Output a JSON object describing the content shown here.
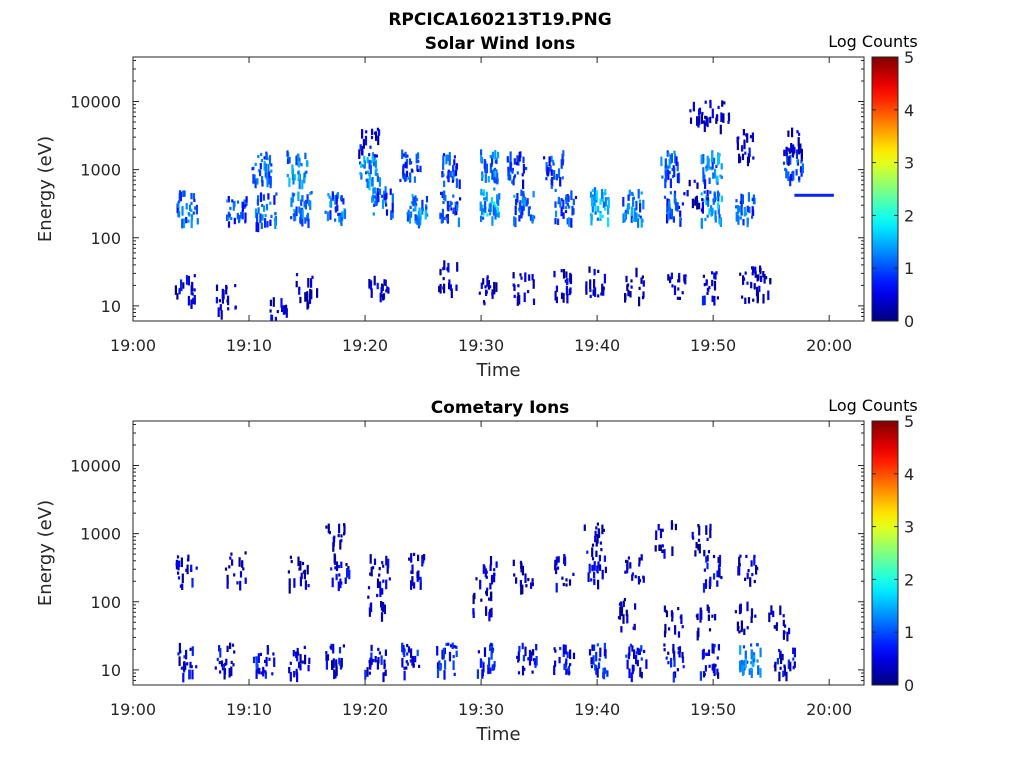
{
  "figure_title": "RPCICA160213T19.PNG",
  "chart_data": [
    {
      "type": "heatmap",
      "title": "Solar Wind Ions",
      "xlabel": "Time",
      "ylabel": "Energy (eV)",
      "x_ticks": [
        "19:00",
        "19:10",
        "19:20",
        "19:30",
        "19:40",
        "19:50",
        "20:00"
      ],
      "y_ticks": [
        "10",
        "100",
        "1000",
        "10000"
      ],
      "y_scale": "log",
      "ylim": [
        6,
        45000
      ],
      "xlim": [
        "19:00",
        "20:03"
      ],
      "colorbar": {
        "label": "Log Counts",
        "range": [
          0,
          5
        ],
        "ticks": [
          "0",
          "1",
          "2",
          "3",
          "4",
          "5"
        ],
        "colormap": "jet"
      },
      "clusters": [
        {
          "t": 4.6,
          "e": 300,
          "v": 1.2
        },
        {
          "t": 8.8,
          "e": 260,
          "v": 1.0
        },
        {
          "t": 11.4,
          "e": 280,
          "v": 1.1
        },
        {
          "t": 14.4,
          "e": 290,
          "v": 1.3
        },
        {
          "t": 17.4,
          "e": 290,
          "v": 1.2
        },
        {
          "t": 21.4,
          "e": 350,
          "v": 1.1
        },
        {
          "t": 24.4,
          "e": 300,
          "v": 1.3
        },
        {
          "t": 27.2,
          "e": 330,
          "v": 1.0
        },
        {
          "t": 30.6,
          "e": 330,
          "v": 1.5
        },
        {
          "t": 33.6,
          "e": 320,
          "v": 1.2
        },
        {
          "t": 37.2,
          "e": 320,
          "v": 1.1
        },
        {
          "t": 40.2,
          "e": 330,
          "v": 1.5
        },
        {
          "t": 43.0,
          "e": 310,
          "v": 1.3
        },
        {
          "t": 46.6,
          "e": 320,
          "v": 1.0
        },
        {
          "t": 49.8,
          "e": 300,
          "v": 1.4
        },
        {
          "t": 52.6,
          "e": 310,
          "v": 1.1
        },
        {
          "t": 11.1,
          "e": 1150,
          "v": 1.2
        },
        {
          "t": 14.1,
          "e": 1150,
          "v": 1.3
        },
        {
          "t": 20.3,
          "e": 1150,
          "v": 1.4
        },
        {
          "t": 23.8,
          "e": 1200,
          "v": 1.0
        },
        {
          "t": 27.2,
          "e": 1120,
          "v": 1.0
        },
        {
          "t": 30.5,
          "e": 1200,
          "v": 1.2
        },
        {
          "t": 33.0,
          "e": 1150,
          "v": 1.0
        },
        {
          "t": 36.2,
          "e": 1150,
          "v": 1.0
        },
        {
          "t": 46.3,
          "e": 1150,
          "v": 1.1
        },
        {
          "t": 49.8,
          "e": 1150,
          "v": 1.3
        },
        {
          "t": 56.9,
          "e": 1300,
          "v": 1.0
        },
        {
          "t": 4.5,
          "e": 18,
          "v": 0.5
        },
        {
          "t": 8.0,
          "e": 14,
          "v": 0.4
        },
        {
          "t": 12.4,
          "e": 8,
          "v": 0.4
        },
        {
          "t": 14.9,
          "e": 19,
          "v": 0.4
        },
        {
          "t": 21.1,
          "e": 19,
          "v": 0.4
        },
        {
          "t": 27.0,
          "e": 28,
          "v": 0.4
        },
        {
          "t": 30.6,
          "e": 19,
          "v": 0.4
        },
        {
          "t": 33.6,
          "e": 19,
          "v": 0.4
        },
        {
          "t": 37.0,
          "e": 21,
          "v": 0.5
        },
        {
          "t": 39.8,
          "e": 24,
          "v": 0.4
        },
        {
          "t": 43.2,
          "e": 22,
          "v": 0.4
        },
        {
          "t": 46.9,
          "e": 22,
          "v": 0.4
        },
        {
          "t": 49.8,
          "e": 20,
          "v": 0.5
        },
        {
          "t": 52.9,
          "e": 20,
          "v": 0.4
        },
        {
          "t": 54.1,
          "e": 24,
          "v": 0.4
        },
        {
          "t": 48.7,
          "e": 6700,
          "v": 0.4
        },
        {
          "t": 50.5,
          "e": 7600,
          "v": 0.4
        },
        {
          "t": 20.3,
          "e": 2500,
          "v": 0.5
        },
        {
          "t": 48.6,
          "e": 430,
          "v": 0.4
        },
        {
          "t": 52.6,
          "e": 2400,
          "v": 0.5
        },
        {
          "t": 56.9,
          "e": 2600,
          "v": 0.4
        }
      ],
      "streaks": [
        {
          "t0": 57.0,
          "t1": 60.4,
          "e": 420,
          "v": 0.8
        }
      ]
    },
    {
      "type": "heatmap",
      "title": "Cometary Ions",
      "xlabel": "Time",
      "ylabel": "Energy (eV)",
      "x_ticks": [
        "19:00",
        "19:10",
        "19:20",
        "19:30",
        "19:40",
        "19:50",
        "20:00"
      ],
      "y_ticks": [
        "10",
        "100",
        "1000",
        "10000"
      ],
      "y_scale": "log",
      "ylim": [
        6,
        45000
      ],
      "xlim": [
        "19:00",
        "20:03"
      ],
      "colorbar": {
        "label": "Log Counts",
        "range": [
          0,
          5
        ],
        "ticks": [
          "0",
          "1",
          "2",
          "3",
          "4",
          "5"
        ],
        "colormap": "jet"
      },
      "clusters": [
        {
          "t": 4.7,
          "e": 15,
          "v": 0.6
        },
        {
          "t": 7.8,
          "e": 15,
          "v": 0.6
        },
        {
          "t": 11.2,
          "e": 15,
          "v": 0.7
        },
        {
          "t": 14.2,
          "e": 15,
          "v": 0.6
        },
        {
          "t": 17.4,
          "e": 15,
          "v": 0.6
        },
        {
          "t": 20.8,
          "e": 15,
          "v": 0.7
        },
        {
          "t": 23.9,
          "e": 15,
          "v": 0.7
        },
        {
          "t": 27.0,
          "e": 15,
          "v": 0.8
        },
        {
          "t": 30.4,
          "e": 15,
          "v": 0.7
        },
        {
          "t": 33.8,
          "e": 15,
          "v": 0.6
        },
        {
          "t": 37.1,
          "e": 15,
          "v": 0.6
        },
        {
          "t": 40.0,
          "e": 15,
          "v": 0.8
        },
        {
          "t": 43.3,
          "e": 15,
          "v": 0.7
        },
        {
          "t": 46.6,
          "e": 15,
          "v": 0.6
        },
        {
          "t": 49.7,
          "e": 15,
          "v": 0.7
        },
        {
          "t": 53.1,
          "e": 15,
          "v": 1.3
        },
        {
          "t": 56.1,
          "e": 15,
          "v": 0.6
        },
        {
          "t": 4.5,
          "e": 300,
          "v": 0.5
        },
        {
          "t": 8.8,
          "e": 330,
          "v": 0.4
        },
        {
          "t": 14.2,
          "e": 300,
          "v": 0.4
        },
        {
          "t": 17.8,
          "e": 320,
          "v": 0.5
        },
        {
          "t": 21.2,
          "e": 300,
          "v": 0.4
        },
        {
          "t": 24.4,
          "e": 320,
          "v": 0.5
        },
        {
          "t": 30.4,
          "e": 300,
          "v": 0.4
        },
        {
          "t": 33.6,
          "e": 290,
          "v": 0.4
        },
        {
          "t": 37.0,
          "e": 300,
          "v": 0.4
        },
        {
          "t": 39.9,
          "e": 340,
          "v": 0.5
        },
        {
          "t": 43.2,
          "e": 300,
          "v": 0.4
        },
        {
          "t": 49.8,
          "e": 300,
          "v": 0.5
        },
        {
          "t": 52.9,
          "e": 320,
          "v": 0.4
        },
        {
          "t": 17.4,
          "e": 900,
          "v": 0.3
        },
        {
          "t": 39.6,
          "e": 950,
          "v": 0.3
        },
        {
          "t": 45.8,
          "e": 950,
          "v": 0.3
        },
        {
          "t": 48.8,
          "e": 950,
          "v": 0.3
        },
        {
          "t": 21.0,
          "e": 110,
          "v": 0.3
        },
        {
          "t": 30.0,
          "e": 110,
          "v": 0.3
        },
        {
          "t": 42.6,
          "e": 70,
          "v": 0.3
        },
        {
          "t": 46.4,
          "e": 60,
          "v": 0.3
        },
        {
          "t": 49.3,
          "e": 60,
          "v": 0.3
        },
        {
          "t": 52.7,
          "e": 60,
          "v": 0.3
        },
        {
          "t": 55.6,
          "e": 60,
          "v": 0.3
        }
      ],
      "streaks": []
    }
  ]
}
